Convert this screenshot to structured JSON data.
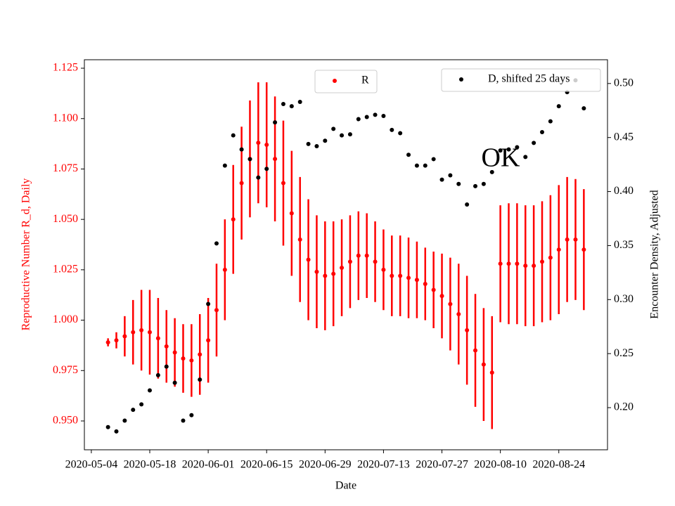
{
  "chart_data": {
    "type": "errorbar_scatter",
    "xlabel": "Date",
    "ylabel": "Reproductive Number R_d, Daily",
    "y2label": "Encounter Density, Adjusted",
    "annotation": "OK",
    "x": [
      "2020-05-08",
      "2020-05-10",
      "2020-05-12",
      "2020-05-14",
      "2020-05-16",
      "2020-05-18",
      "2020-05-20",
      "2020-05-22",
      "2020-05-24",
      "2020-05-26",
      "2020-05-28",
      "2020-05-30",
      "2020-06-01",
      "2020-06-03",
      "2020-06-05",
      "2020-06-07",
      "2020-06-09",
      "2020-06-11",
      "2020-06-13",
      "2020-06-15",
      "2020-06-17",
      "2020-06-19",
      "2020-06-21",
      "2020-06-23",
      "2020-06-25",
      "2020-06-27",
      "2020-06-29",
      "2020-07-01",
      "2020-07-03",
      "2020-07-05",
      "2020-07-07",
      "2020-07-09",
      "2020-07-11",
      "2020-07-13",
      "2020-07-15",
      "2020-07-17",
      "2020-07-19",
      "2020-07-21",
      "2020-07-23",
      "2020-07-25",
      "2020-07-27",
      "2020-07-29",
      "2020-07-31",
      "2020-08-02",
      "2020-08-04",
      "2020-08-06",
      "2020-08-08",
      "2020-08-10",
      "2020-08-12",
      "2020-08-14",
      "2020-08-16",
      "2020-08-18",
      "2020-08-20",
      "2020-08-22",
      "2020-08-24",
      "2020-08-26",
      "2020-08-28",
      "2020-08-30"
    ],
    "xlim": [
      "2020-05-02T08:00",
      "2020-09-04T16:00"
    ],
    "xticks": [
      "2020-05-04",
      "2020-05-18",
      "2020-06-01",
      "2020-06-15",
      "2020-06-29",
      "2020-07-13",
      "2020-07-27",
      "2020-08-10",
      "2020-08-24"
    ],
    "ylim": [
      0.9357,
      1.1292
    ],
    "yticks": [
      {
        "value": 0.95,
        "label": "0.950"
      },
      {
        "value": 0.975,
        "label": "0.975"
      },
      {
        "value": 1.0,
        "label": "1.000"
      },
      1.025,
      {
        "value": 1.05,
        "label": "1.050"
      },
      1.075,
      {
        "value": 1.1,
        "label": "1.100"
      },
      1.125
    ],
    "y2lim": [
      0.161,
      0.522
    ],
    "y2ticks": [
      {
        "value": 0.2,
        "label": "0.20"
      },
      0.25,
      {
        "value": 0.3,
        "label": "0.30"
      },
      0.35,
      {
        "value": 0.4,
        "label": "0.40"
      },
      0.45,
      {
        "value": 0.5,
        "label": "0.50"
      }
    ],
    "ycolor": "#ff0000",
    "series": [
      {
        "name": "R",
        "color": "#ff0000",
        "axis": "y",
        "legend": "upper center",
        "values": [
          0.989,
          0.99,
          0.992,
          0.994,
          0.995,
          0.994,
          0.991,
          0.987,
          0.984,
          0.981,
          0.98,
          0.983,
          0.99,
          1.005,
          1.025,
          1.05,
          1.068,
          1.08,
          1.088,
          1.087,
          1.08,
          1.068,
          1.053,
          1.04,
          1.03,
          1.024,
          1.022,
          1.023,
          1.026,
          1.029,
          1.032,
          1.032,
          1.029,
          1.025,
          1.022,
          1.022,
          1.021,
          1.02,
          1.018,
          1.015,
          1.012,
          1.008,
          1.003,
          0.995,
          0.985,
          0.978,
          0.974,
          1.028,
          1.028,
          1.028,
          1.027,
          1.027,
          1.029,
          1.031,
          1.035,
          1.04,
          1.04,
          1.035
        ],
        "errors": [
          0.002,
          0.004,
          0.01,
          0.016,
          0.02,
          0.021,
          0.02,
          0.018,
          0.017,
          0.017,
          0.018,
          0.02,
          0.021,
          0.023,
          0.025,
          0.027,
          0.028,
          0.029,
          0.03,
          0.031,
          0.031,
          0.031,
          0.031,
          0.031,
          0.03,
          0.028,
          0.027,
          0.026,
          0.024,
          0.023,
          0.022,
          0.021,
          0.02,
          0.02,
          0.02,
          0.02,
          0.02,
          0.019,
          0.018,
          0.019,
          0.021,
          0.023,
          0.025,
          0.027,
          0.028,
          0.028,
          0.028,
          0.029,
          0.03,
          0.03,
          0.03,
          0.03,
          0.03,
          0.031,
          0.032,
          0.031,
          0.03,
          0.03
        ]
      },
      {
        "name": "D, shifted 25 days",
        "color": "#000000",
        "axis": "y2",
        "legend": "upper right",
        "values": [
          0.182,
          0.178,
          0.188,
          0.198,
          0.203,
          0.216,
          0.23,
          0.238,
          0.223,
          0.188,
          0.193,
          0.226,
          0.296,
          0.352,
          0.424,
          0.452,
          0.439,
          0.43,
          0.413,
          0.421,
          0.464,
          0.481,
          0.479,
          0.483,
          0.444,
          0.442,
          0.447,
          0.458,
          0.452,
          0.453,
          0.467,
          0.469,
          0.471,
          0.47,
          0.457,
          0.454,
          0.434,
          0.424,
          0.424,
          0.43,
          0.411,
          0.415,
          0.407,
          0.388,
          0.405,
          0.407,
          0.418,
          0.438,
          0.439,
          0.441,
          0.432,
          0.445,
          0.455,
          0.465,
          0.479,
          0.492,
          0.503,
          0.477
        ]
      }
    ]
  }
}
